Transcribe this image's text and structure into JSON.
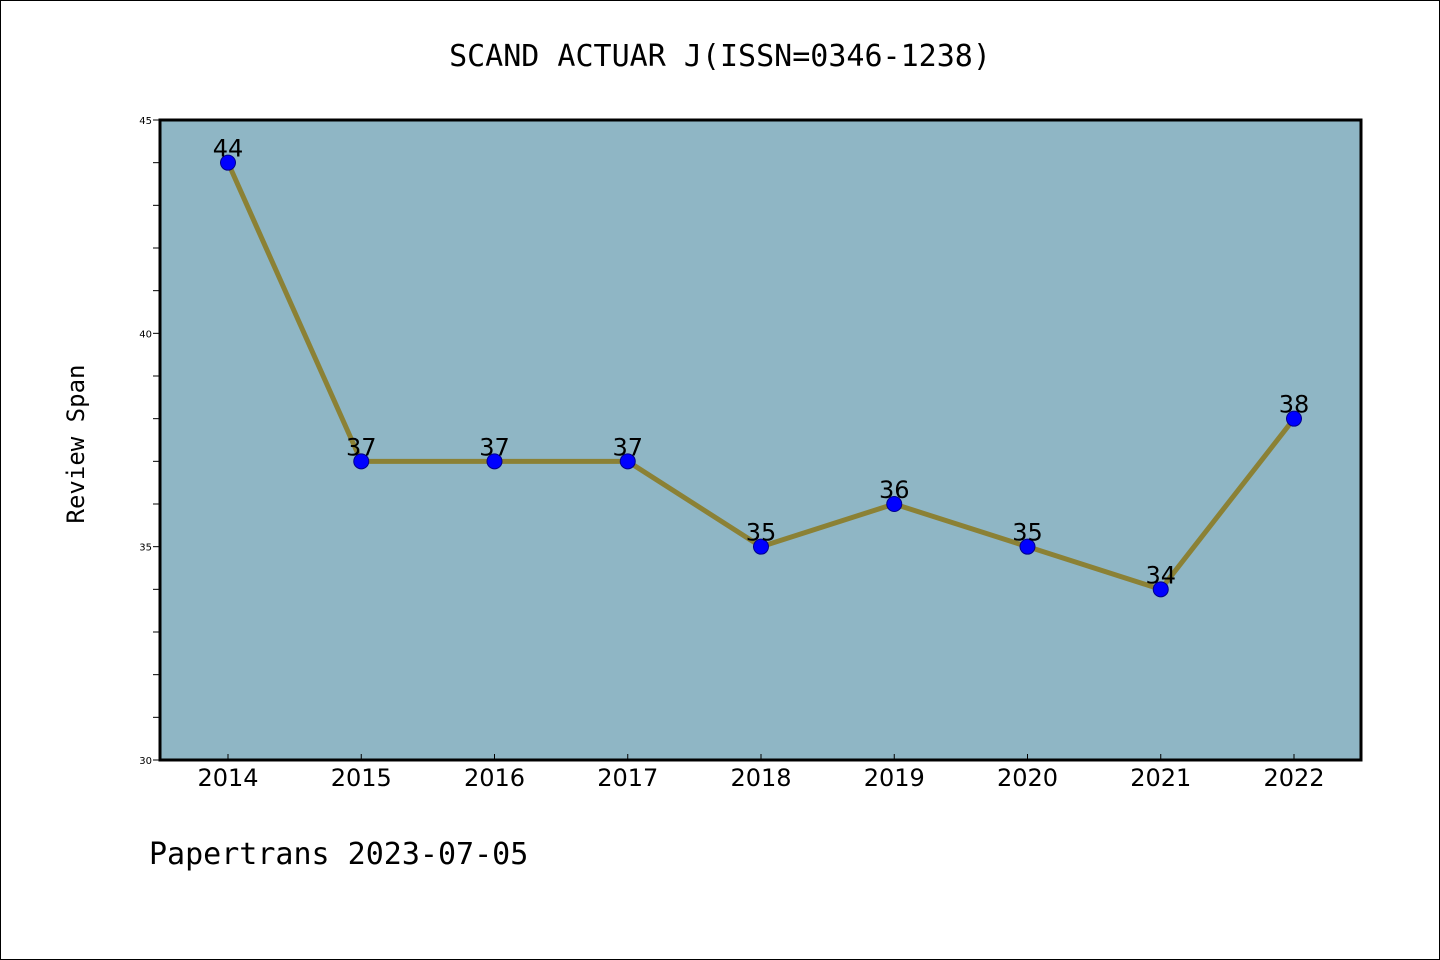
{
  "chart_data": {
    "type": "line",
    "title": "SCAND ACTUAR J(ISSN=0346-1238)",
    "xlabel": "",
    "ylabel": "Review Span",
    "categories": [
      "2014",
      "2015",
      "2016",
      "2017",
      "2018",
      "2019",
      "2020",
      "2021",
      "2022"
    ],
    "series": [
      {
        "values": [
          44,
          37,
          37,
          37,
          35,
          36,
          35,
          34,
          38
        ]
      }
    ],
    "data_labels": [
      "44",
      "37",
      "37",
      "37",
      "35",
      "36",
      "35",
      "34",
      "38"
    ],
    "ylim": [
      30,
      45
    ],
    "y_ticks": [
      "30",
      "35",
      "40",
      "45"
    ],
    "y_minor_step": 1,
    "grid": false,
    "legend": "none",
    "colors": {
      "plot_background": "#8fb6c5",
      "line": "#8b8135",
      "marker": "#0000ff",
      "marker_edge": "#00008b"
    }
  },
  "footer": {
    "text": "Papertrans 2023-07-05"
  }
}
